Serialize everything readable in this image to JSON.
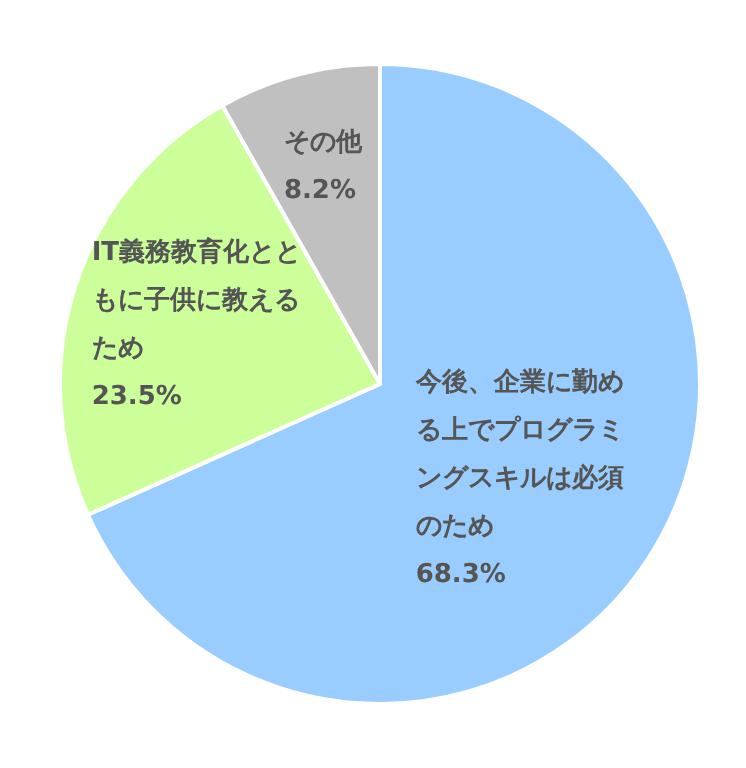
{
  "chart_data": {
    "type": "pie",
    "categories": [
      "今後、企業に勤める上でプログラミングスキルは必須のため",
      "IT義務教育化とともに子供に教えるため",
      "その他"
    ],
    "values": [
      68.3,
      23.5,
      8.2
    ],
    "value_labels": [
      "68.3%",
      "23.5%",
      "8.2%"
    ],
    "colors": [
      "#99ccff",
      "#ccff99",
      "#c0c0c0"
    ],
    "legend": false
  }
}
